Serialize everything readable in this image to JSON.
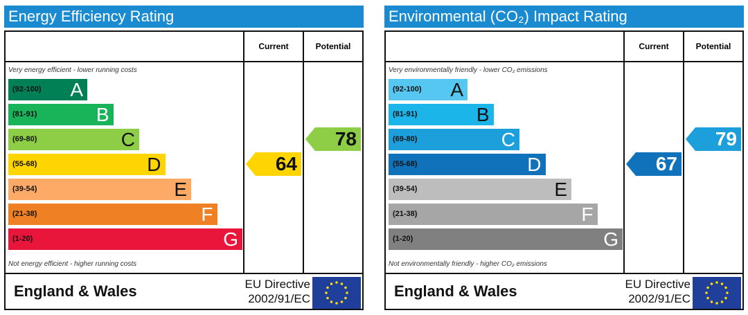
{
  "chart_data": [
    {
      "type": "bar",
      "title": "Energy Efficiency Rating",
      "columns": [
        "Current",
        "Potential"
      ],
      "top_note": "Very energy efficient - lower running costs",
      "bottom_note": "Not energy efficient - higher running costs",
      "bands": [
        {
          "range": "(92-100)",
          "letter": "A",
          "color": "#008054"
        },
        {
          "range": "(81-91)",
          "letter": "B",
          "color": "#19b459"
        },
        {
          "range": "(69-80)",
          "letter": "C",
          "color": "#8dce46"
        },
        {
          "range": "(55-68)",
          "letter": "D",
          "color": "#ffd500"
        },
        {
          "range": "(39-54)",
          "letter": "E",
          "color": "#fcaa65"
        },
        {
          "range": "(21-38)",
          "letter": "F",
          "color": "#ef8023"
        },
        {
          "range": "(1-20)",
          "letter": "G",
          "color": "#e9153b"
        }
      ],
      "current": {
        "value": 64,
        "band": "D",
        "color": "#ffd500"
      },
      "potential": {
        "value": 78,
        "band": "C",
        "color": "#8dce46"
      },
      "footer": {
        "region": "England & Wales",
        "directive_line1": "EU Directive",
        "directive_line2": "2002/91/EC"
      }
    },
    {
      "type": "bar",
      "title": "Environmental (CO₂) Impact Rating",
      "columns": [
        "Current",
        "Potential"
      ],
      "top_note": "Very environmentally friendly - lower CO₂ emissions",
      "bottom_note": "Not environmentally friendly - higher CO₂ emissions",
      "bands": [
        {
          "range": "(92-100)",
          "letter": "A",
          "color": "#55c7f0"
        },
        {
          "range": "(81-91)",
          "letter": "B",
          "color": "#1cb5ea"
        },
        {
          "range": "(69-80)",
          "letter": "C",
          "color": "#1d9fdc"
        },
        {
          "range": "(55-68)",
          "letter": "D",
          "color": "#0f72bb"
        },
        {
          "range": "(39-54)",
          "letter": "E",
          "color": "#bdbdbd"
        },
        {
          "range": "(21-38)",
          "letter": "F",
          "color": "#a6a6a6"
        },
        {
          "range": "(1-20)",
          "letter": "G",
          "color": "#808080"
        }
      ],
      "current": {
        "value": 67,
        "band": "D",
        "color": "#0f72bb"
      },
      "potential": {
        "value": 79,
        "band": "C",
        "color": "#1d9fdc"
      },
      "footer": {
        "region": "England & Wales",
        "directive_line1": "EU Directive",
        "directive_line2": "2002/91/EC"
      }
    }
  ]
}
